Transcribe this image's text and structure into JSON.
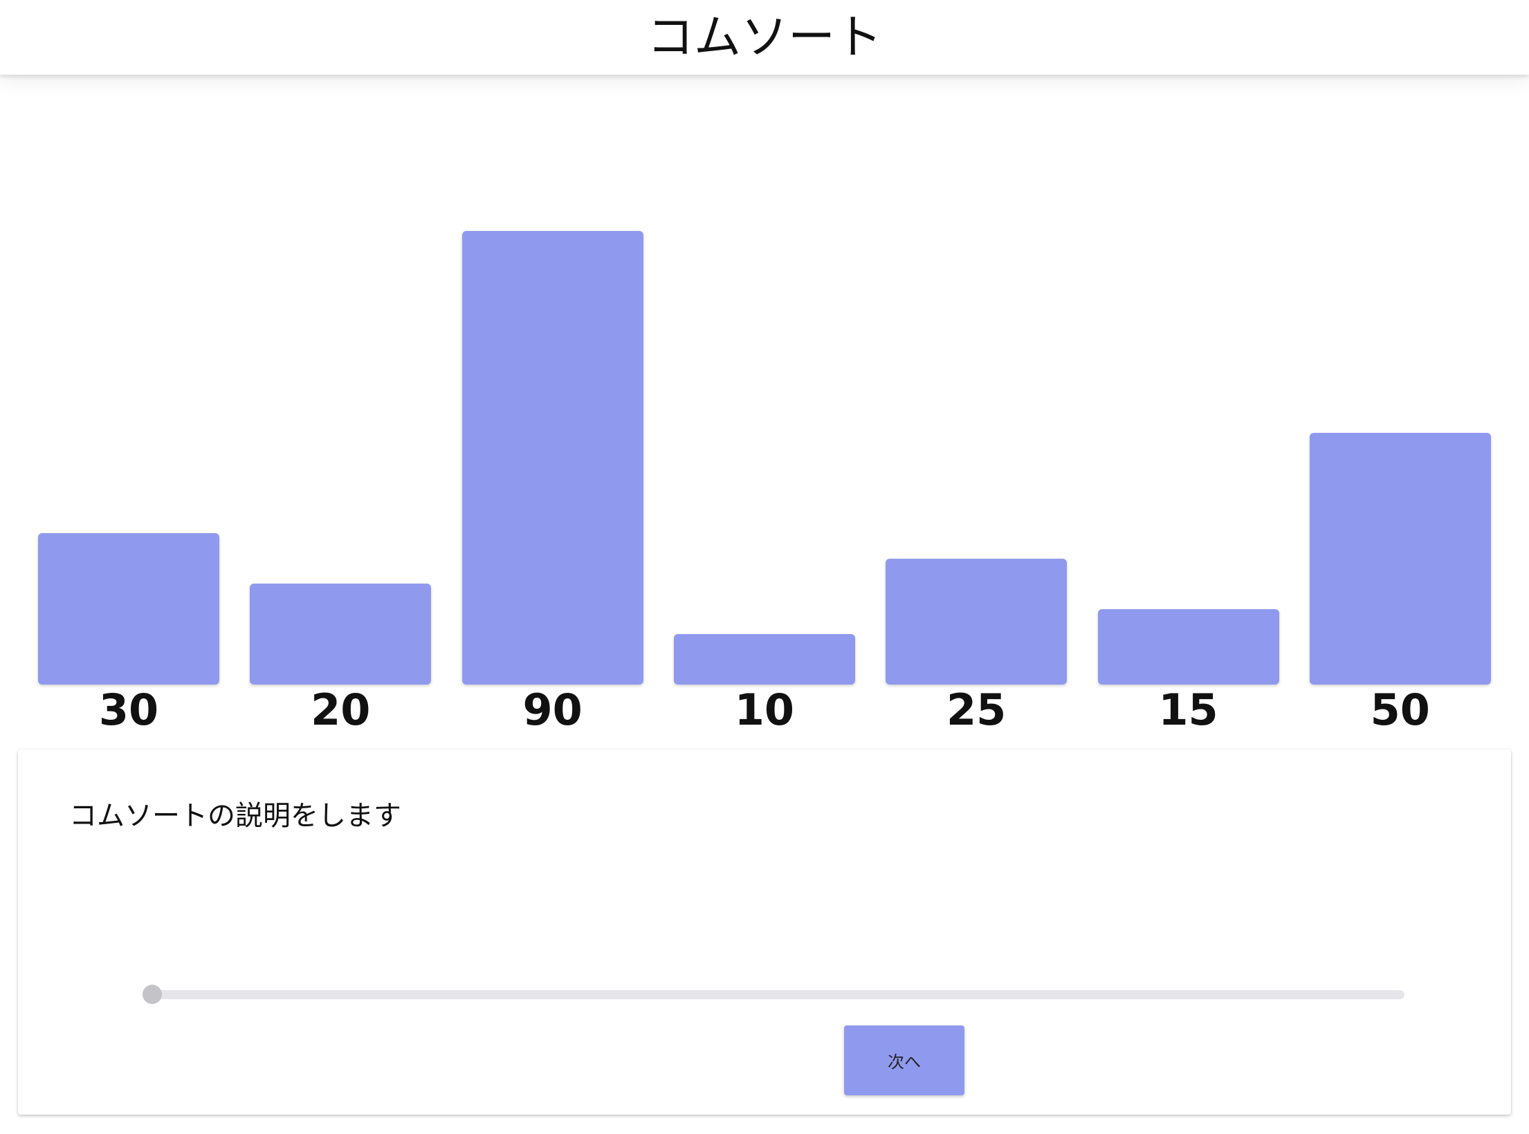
{
  "header": {
    "title": "コムソート"
  },
  "theme": {
    "accent": "#8f9aee",
    "slider_track": "#e6e6ea",
    "slider_thumb": "#c4c4c8"
  },
  "chart_data": {
    "type": "bar",
    "categories": [
      "30",
      "20",
      "90",
      "10",
      "25",
      "15",
      "50"
    ],
    "values": [
      30,
      20,
      90,
      10,
      25,
      15,
      50
    ],
    "title": "",
    "xlabel": "",
    "ylabel": "",
    "ylim": [
      0,
      90
    ],
    "grid": false,
    "color": "#8f9aee"
  },
  "panel": {
    "description": "コムソートの説明をします",
    "slider": {
      "value": 0,
      "min": 0,
      "max": 1
    },
    "next_button_label": "次へ"
  }
}
